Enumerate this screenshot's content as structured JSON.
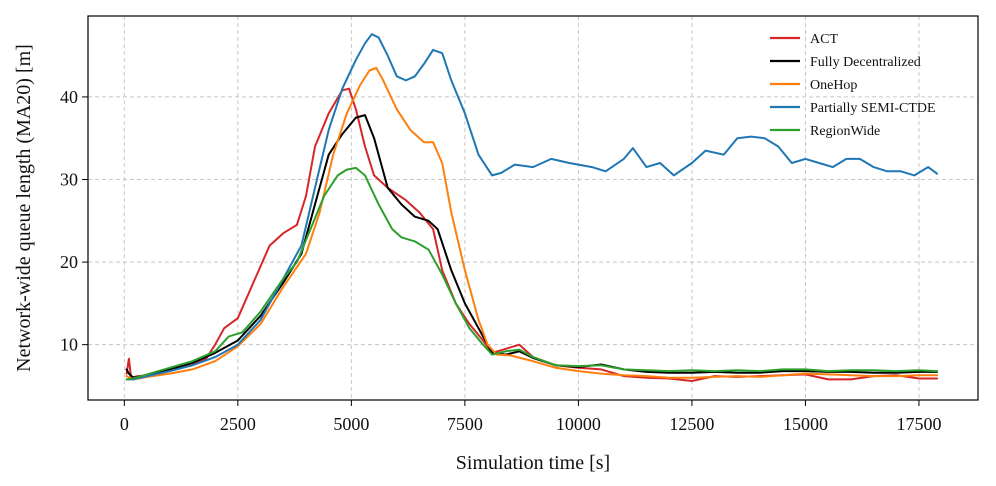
{
  "chart_data": {
    "type": "line",
    "title": "",
    "xlabel": "Simulation time [s]",
    "ylabel": "Network-wide queue length (MA20) [m]",
    "xlim": [
      -800,
      18800
    ],
    "ylim": [
      3.3,
      49.8
    ],
    "xticks": [
      0,
      2500,
      5000,
      7500,
      10000,
      12500,
      15000,
      17500
    ],
    "yticks": [
      10,
      20,
      30,
      40
    ],
    "grid": true,
    "legend_position": "top-right",
    "series": [
      {
        "name": "ACT",
        "color": "#d62728",
        "points": [
          [
            50,
            6.5
          ],
          [
            100,
            8.3
          ],
          [
            150,
            6.0
          ],
          [
            300,
            6.2
          ],
          [
            600,
            6.3
          ],
          [
            1000,
            7.0
          ],
          [
            1400,
            7.5
          ],
          [
            1800,
            8.3
          ],
          [
            2000,
            10.0
          ],
          [
            2200,
            12.0
          ],
          [
            2500,
            13.2
          ],
          [
            2800,
            17.0
          ],
          [
            3200,
            22.0
          ],
          [
            3500,
            23.5
          ],
          [
            3800,
            24.5
          ],
          [
            4000,
            28.0
          ],
          [
            4200,
            34.0
          ],
          [
            4500,
            38.0
          ],
          [
            4800,
            40.8
          ],
          [
            4950,
            41.0
          ],
          [
            5100,
            38.5
          ],
          [
            5300,
            34.0
          ],
          [
            5500,
            30.5
          ],
          [
            5800,
            29.0
          ],
          [
            6200,
            27.5
          ],
          [
            6500,
            26.0
          ],
          [
            6800,
            24.0
          ],
          [
            7000,
            19.0
          ],
          [
            7300,
            15.0
          ],
          [
            7600,
            12.5
          ],
          [
            7900,
            10.5
          ],
          [
            8100,
            9.0
          ],
          [
            8400,
            9.5
          ],
          [
            8700,
            10.0
          ],
          [
            9000,
            8.5
          ],
          [
            9500,
            7.5
          ],
          [
            10000,
            7.2
          ],
          [
            10500,
            7.0
          ],
          [
            11000,
            6.2
          ],
          [
            11500,
            6.0
          ],
          [
            12000,
            5.9
          ],
          [
            12500,
            5.6
          ],
          [
            13000,
            6.2
          ],
          [
            13500,
            6.1
          ],
          [
            14000,
            6.2
          ],
          [
            14500,
            6.3
          ],
          [
            15000,
            6.4
          ],
          [
            15500,
            5.8
          ],
          [
            16000,
            5.8
          ],
          [
            16500,
            6.2
          ],
          [
            17000,
            6.3
          ],
          [
            17500,
            5.9
          ],
          [
            17900,
            5.9
          ]
        ]
      },
      {
        "name": "Fully Decentralized",
        "color": "#000000",
        "points": [
          [
            50,
            7.0
          ],
          [
            100,
            6.5
          ],
          [
            200,
            6.0
          ],
          [
            500,
            6.3
          ],
          [
            1000,
            7.0
          ],
          [
            1500,
            7.8
          ],
          [
            2000,
            9.0
          ],
          [
            2500,
            10.5
          ],
          [
            3000,
            13.5
          ],
          [
            3500,
            17.5
          ],
          [
            3900,
            21.0
          ],
          [
            4200,
            27.0
          ],
          [
            4500,
            33.0
          ],
          [
            4800,
            35.5
          ],
          [
            5100,
            37.5
          ],
          [
            5300,
            37.8
          ],
          [
            5500,
            35.0
          ],
          [
            5800,
            29.0
          ],
          [
            6100,
            27.0
          ],
          [
            6400,
            25.5
          ],
          [
            6700,
            25.0
          ],
          [
            6900,
            24.0
          ],
          [
            7200,
            19.0
          ],
          [
            7500,
            15.0
          ],
          [
            7800,
            12.0
          ],
          [
            8100,
            9.0
          ],
          [
            8400,
            8.8
          ],
          [
            8700,
            9.2
          ],
          [
            9000,
            8.4
          ],
          [
            9500,
            7.5
          ],
          [
            10000,
            7.3
          ],
          [
            10500,
            7.6
          ],
          [
            11000,
            7.0
          ],
          [
            11500,
            6.7
          ],
          [
            12000,
            6.6
          ],
          [
            12500,
            6.6
          ],
          [
            13000,
            6.7
          ],
          [
            13500,
            6.6
          ],
          [
            14000,
            6.6
          ],
          [
            14500,
            6.8
          ],
          [
            15000,
            6.8
          ],
          [
            15500,
            6.7
          ],
          [
            16000,
            6.7
          ],
          [
            16500,
            6.6
          ],
          [
            17000,
            6.6
          ],
          [
            17500,
            6.7
          ],
          [
            17900,
            6.7
          ]
        ]
      },
      {
        "name": "OneHop",
        "color": "#ff7f0e",
        "points": [
          [
            50,
            6.2
          ],
          [
            200,
            5.8
          ],
          [
            500,
            6.1
          ],
          [
            1000,
            6.5
          ],
          [
            1500,
            7.0
          ],
          [
            2000,
            8.0
          ],
          [
            2500,
            9.8
          ],
          [
            3000,
            12.5
          ],
          [
            3500,
            17.0
          ],
          [
            4000,
            21.0
          ],
          [
            4300,
            26.0
          ],
          [
            4600,
            33.0
          ],
          [
            4900,
            38.0
          ],
          [
            5200,
            41.5
          ],
          [
            5400,
            43.2
          ],
          [
            5550,
            43.5
          ],
          [
            5700,
            42.0
          ],
          [
            6000,
            38.5
          ],
          [
            6300,
            36.0
          ],
          [
            6600,
            34.5
          ],
          [
            6800,
            34.5
          ],
          [
            7000,
            32.0
          ],
          [
            7200,
            26.0
          ],
          [
            7500,
            19.0
          ],
          [
            7800,
            13.0
          ],
          [
            8000,
            10.0
          ],
          [
            8200,
            8.8
          ],
          [
            8500,
            8.7
          ],
          [
            9000,
            8.0
          ],
          [
            9500,
            7.2
          ],
          [
            10000,
            6.8
          ],
          [
            10500,
            6.5
          ],
          [
            11000,
            6.3
          ],
          [
            11500,
            6.2
          ],
          [
            12000,
            6.0
          ],
          [
            12500,
            6.0
          ],
          [
            13000,
            6.1
          ],
          [
            13500,
            6.2
          ],
          [
            14000,
            6.1
          ],
          [
            14500,
            6.3
          ],
          [
            15000,
            6.5
          ],
          [
            15500,
            6.4
          ],
          [
            16000,
            6.3
          ],
          [
            16500,
            6.2
          ],
          [
            17000,
            6.2
          ],
          [
            17500,
            6.3
          ],
          [
            17900,
            6.3
          ]
        ]
      },
      {
        "name": "Partially SEMI-CTDE",
        "color": "#1f77b4",
        "points": [
          [
            50,
            5.8
          ],
          [
            200,
            5.8
          ],
          [
            500,
            6.2
          ],
          [
            1000,
            6.8
          ],
          [
            1500,
            7.5
          ],
          [
            2000,
            8.5
          ],
          [
            2500,
            10.0
          ],
          [
            3000,
            13.0
          ],
          [
            3500,
            18.0
          ],
          [
            3900,
            22.0
          ],
          [
            4200,
            29.0
          ],
          [
            4500,
            36.0
          ],
          [
            4800,
            41.0
          ],
          [
            5100,
            44.5
          ],
          [
            5300,
            46.5
          ],
          [
            5450,
            47.6
          ],
          [
            5600,
            47.2
          ],
          [
            5800,
            45.0
          ],
          [
            6000,
            42.5
          ],
          [
            6200,
            42.0
          ],
          [
            6400,
            42.5
          ],
          [
            6600,
            44.0
          ],
          [
            6800,
            45.7
          ],
          [
            7000,
            45.3
          ],
          [
            7200,
            42.0
          ],
          [
            7500,
            38.0
          ],
          [
            7800,
            33.0
          ],
          [
            8100,
            30.5
          ],
          [
            8300,
            30.8
          ],
          [
            8600,
            31.8
          ],
          [
            9000,
            31.5
          ],
          [
            9400,
            32.5
          ],
          [
            9800,
            32.0
          ],
          [
            10300,
            31.5
          ],
          [
            10600,
            31.0
          ],
          [
            11000,
            32.5
          ],
          [
            11200,
            33.8
          ],
          [
            11500,
            31.5
          ],
          [
            11800,
            32.0
          ],
          [
            12100,
            30.5
          ],
          [
            12500,
            32.0
          ],
          [
            12800,
            33.5
          ],
          [
            13200,
            33.0
          ],
          [
            13500,
            35.0
          ],
          [
            13800,
            35.2
          ],
          [
            14100,
            35.0
          ],
          [
            14400,
            34.0
          ],
          [
            14700,
            32.0
          ],
          [
            15000,
            32.5
          ],
          [
            15300,
            32.0
          ],
          [
            15600,
            31.5
          ],
          [
            15900,
            32.5
          ],
          [
            16200,
            32.5
          ],
          [
            16500,
            31.5
          ],
          [
            16800,
            31.0
          ],
          [
            17100,
            31.0
          ],
          [
            17400,
            30.5
          ],
          [
            17700,
            31.5
          ],
          [
            17900,
            30.7
          ]
        ]
      },
      {
        "name": "RegionWide",
        "color": "#2ca02c",
        "points": [
          [
            50,
            5.8
          ],
          [
            200,
            5.9
          ],
          [
            500,
            6.4
          ],
          [
            1000,
            7.2
          ],
          [
            1500,
            8.0
          ],
          [
            2000,
            9.2
          ],
          [
            2300,
            11.0
          ],
          [
            2600,
            11.5
          ],
          [
            3000,
            14.0
          ],
          [
            3500,
            18.0
          ],
          [
            3800,
            20.0
          ],
          [
            4100,
            24.0
          ],
          [
            4400,
            28.0
          ],
          [
            4700,
            30.5
          ],
          [
            4900,
            31.2
          ],
          [
            5100,
            31.4
          ],
          [
            5300,
            30.5
          ],
          [
            5600,
            27.0
          ],
          [
            5900,
            24.0
          ],
          [
            6100,
            23.0
          ],
          [
            6400,
            22.5
          ],
          [
            6700,
            21.5
          ],
          [
            7000,
            18.5
          ],
          [
            7300,
            15.0
          ],
          [
            7600,
            12.0
          ],
          [
            7900,
            10.0
          ],
          [
            8100,
            8.8
          ],
          [
            8400,
            9.2
          ],
          [
            8700,
            9.4
          ],
          [
            9000,
            8.5
          ],
          [
            9500,
            7.5
          ],
          [
            10000,
            7.4
          ],
          [
            10500,
            7.5
          ],
          [
            11000,
            7.0
          ],
          [
            11500,
            6.9
          ],
          [
            12000,
            6.8
          ],
          [
            12500,
            6.9
          ],
          [
            13000,
            6.8
          ],
          [
            13500,
            6.9
          ],
          [
            14000,
            6.8
          ],
          [
            14500,
            7.0
          ],
          [
            15000,
            7.0
          ],
          [
            15500,
            6.8
          ],
          [
            16000,
            6.9
          ],
          [
            16500,
            6.9
          ],
          [
            17000,
            6.8
          ],
          [
            17500,
            6.9
          ],
          [
            17900,
            6.8
          ]
        ]
      }
    ]
  }
}
